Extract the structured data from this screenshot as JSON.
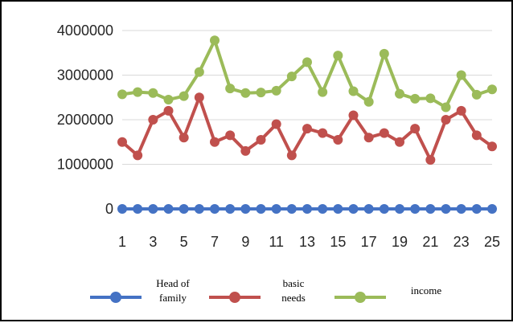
{
  "chart_data": {
    "type": "line",
    "x": [
      1,
      2,
      3,
      4,
      5,
      6,
      7,
      8,
      9,
      10,
      11,
      12,
      13,
      14,
      15,
      16,
      17,
      18,
      19,
      20,
      21,
      22,
      23,
      24,
      25
    ],
    "x_tick_labels": [
      "1",
      "3",
      "5",
      "7",
      "9",
      "11",
      "13",
      "15",
      "17",
      "19",
      "21",
      "23",
      "25"
    ],
    "ylim": [
      0,
      4000000
    ],
    "y_ticks": [
      0,
      1000000,
      2000000,
      3000000,
      4000000
    ],
    "y_tick_labels": [
      "0",
      "1000000",
      "2000000",
      "3000000",
      "4000000"
    ],
    "grid": "horizontal",
    "legend_position": "bottom",
    "series": [
      {
        "name": "Head of family",
        "legend_lines": [
          "Head of",
          "family"
        ],
        "color": "#4472C4",
        "values": [
          0,
          0,
          0,
          0,
          0,
          0,
          0,
          0,
          0,
          0,
          0,
          0,
          0,
          0,
          0,
          0,
          0,
          0,
          0,
          0,
          0,
          0,
          0,
          0,
          0
        ]
      },
      {
        "name": "basic needs",
        "legend_lines": [
          "basic",
          "needs"
        ],
        "color": "#C0504D",
        "values": [
          1500000,
          1200000,
          2000000,
          2200000,
          1600000,
          2500000,
          1500000,
          1650000,
          1300000,
          1550000,
          1900000,
          1200000,
          1800000,
          1700000,
          1550000,
          2100000,
          1600000,
          1700000,
          1500000,
          1800000,
          1100000,
          2000000,
          2200000,
          1650000,
          1400000
        ]
      },
      {
        "name": "income",
        "legend_lines": [
          "income"
        ],
        "color": "#9BBB59",
        "values": [
          2570000,
          2620000,
          2600000,
          2450000,
          2530000,
          3070000,
          3780000,
          2700000,
          2600000,
          2610000,
          2650000,
          2970000,
          3290000,
          2620000,
          3440000,
          2640000,
          2400000,
          3480000,
          2580000,
          2470000,
          2480000,
          2280000,
          3000000,
          2560000,
          2680000
        ]
      }
    ]
  }
}
